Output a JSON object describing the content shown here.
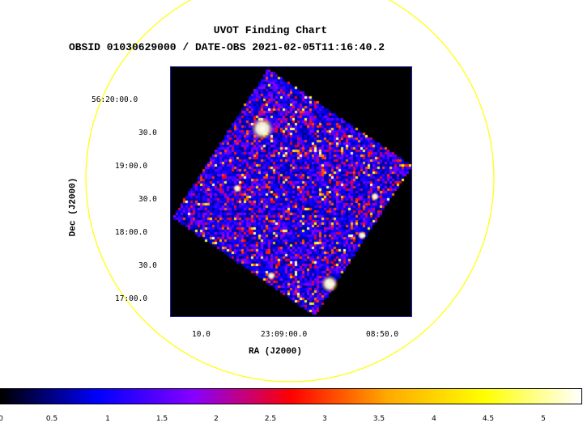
{
  "chart": {
    "title": "UVOT Finding Chart",
    "subtitle": "OBSID 01030629000 / DATE-OBS 2021-02-05T11:16:40.2",
    "xlabel": "RA (J2000)",
    "ylabel": "Dec (J2000)",
    "xticks": [
      "10.0",
      "23:09:00.0",
      "08:50.0"
    ],
    "yticks": [
      "56:20:00.0",
      "30.0",
      "19:00.0",
      "30.0",
      "18:00.0",
      "30.0",
      "17:00.0"
    ],
    "colorbar_ticks": [
      "0",
      "0.5",
      "1",
      "1.5",
      "2",
      "2.5",
      "3",
      "3.5",
      "4",
      "4.5",
      "5"
    ],
    "colors": {
      "circle": "#ffff00",
      "frame": "#2222aa",
      "background": "#000000",
      "colormap": [
        "#000000",
        "#0000ff",
        "#8800ff",
        "#ff0000",
        "#ffaa00",
        "#ffff00",
        "#ffffff"
      ]
    }
  }
}
